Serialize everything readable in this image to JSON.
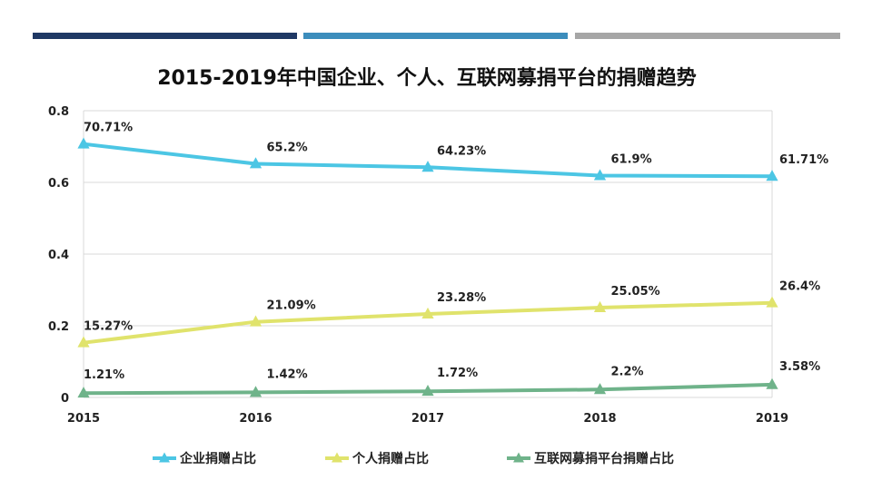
{
  "header": {
    "bar_colors": [
      "#1f3864",
      "#3c8dbc",
      "#a6a6a6"
    ]
  },
  "chart_data": {
    "type": "line",
    "title": "2015-2019年中国企业、个人、互联网募捐平台的捐赠趋势",
    "xlabel": "",
    "ylabel": "",
    "categories": [
      "2015",
      "2016",
      "2017",
      "2018",
      "2019"
    ],
    "ylim": [
      0,
      0.8
    ],
    "yticks": [
      "0",
      "0.2",
      "0.4",
      "0.6",
      "0.8"
    ],
    "grid": true,
    "legend": "bottom",
    "series": [
      {
        "name": "企业捐赠占比",
        "color": "#4cc6e4",
        "values": [
          0.7071,
          0.652,
          0.6423,
          0.619,
          0.6171
        ],
        "labels": [
          "70.71%",
          "65.2%",
          "64.23%",
          "61.9%",
          "61.71%"
        ]
      },
      {
        "name": "个人捐赠占比",
        "color": "#e0e36c",
        "values": [
          0.1527,
          0.2109,
          0.2328,
          0.2505,
          0.264
        ],
        "labels": [
          "15.27%",
          "21.09%",
          "23.28%",
          "25.05%",
          "26.4%"
        ]
      },
      {
        "name": "互联网募捐平台捐赠占比",
        "color": "#6fb38a",
        "values": [
          0.0121,
          0.0142,
          0.0172,
          0.022,
          0.0358
        ],
        "labels": [
          "1.21%",
          "1.42%",
          "1.72%",
          "2.2%",
          "3.58%"
        ]
      }
    ]
  }
}
